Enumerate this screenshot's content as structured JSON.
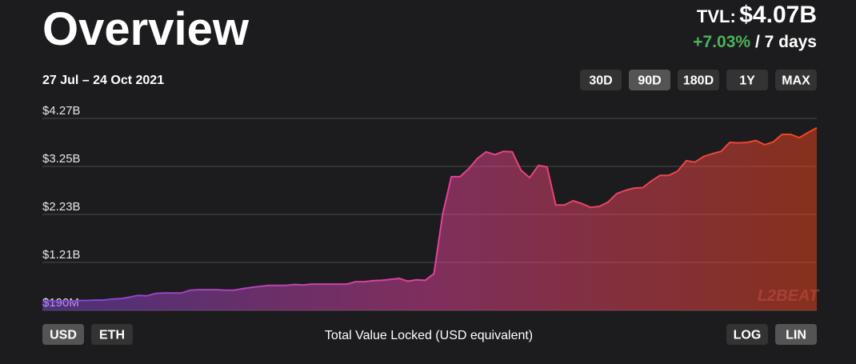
{
  "header": {
    "title": "Overview",
    "tvl_label": "TVL:",
    "tvl_value": "$4.07B",
    "change": "+7.03%",
    "period": "/ 7 days",
    "change_color": "#4cb35a"
  },
  "date_range": "27 Jul – 24 Oct 2021",
  "range_buttons": {
    "options": [
      "30D",
      "90D",
      "180D",
      "1Y",
      "MAX"
    ],
    "selected": 1
  },
  "currency_buttons": {
    "options": [
      "USD",
      "ETH"
    ],
    "selected": 0
  },
  "scale_buttons": {
    "options": [
      "LOG",
      "LIN"
    ],
    "selected": 1
  },
  "watermark": "L2BEAT",
  "chart_data": {
    "type": "area",
    "x_label": "Total Value Locked (USD equivalent)",
    "values": [
      0.39,
      0.39,
      0.39,
      0.39,
      0.4,
      0.4,
      0.41,
      0.41,
      0.43,
      0.44,
      0.47,
      0.51,
      0.5,
      0.55,
      0.56,
      0.56,
      0.56,
      0.62,
      0.63,
      0.63,
      0.63,
      0.62,
      0.62,
      0.65,
      0.68,
      0.7,
      0.72,
      0.72,
      0.72,
      0.74,
      0.73,
      0.75,
      0.75,
      0.75,
      0.75,
      0.75,
      0.8,
      0.8,
      0.82,
      0.83,
      0.85,
      0.87,
      0.81,
      0.84,
      0.83,
      0.97,
      2.23,
      3.03,
      3.03,
      3.2,
      3.42,
      3.56,
      3.5,
      3.57,
      3.56,
      3.17,
      3.01,
      3.27,
      3.24,
      2.43,
      2.43,
      2.52,
      2.46,
      2.38,
      2.4,
      2.49,
      2.67,
      2.74,
      2.79,
      2.8,
      2.94,
      3.06,
      3.06,
      3.15,
      3.37,
      3.34,
      3.46,
      3.52,
      3.57,
      3.76,
      3.75,
      3.76,
      3.8,
      3.71,
      3.77,
      3.93,
      3.93,
      3.86,
      3.97,
      4.07
    ],
    "ylim": [
      0.19,
      4.27
    ],
    "yticks": [
      {
        "value": 0.19,
        "label": "$190M"
      },
      {
        "value": 1.21,
        "label": "$1.21B"
      },
      {
        "value": 2.23,
        "label": "$2.23B"
      },
      {
        "value": 3.25,
        "label": "$3.25B"
      },
      {
        "value": 4.27,
        "label": "$4.27B"
      }
    ],
    "grid": true,
    "colors": [
      "#7b45d6",
      "#e2429c",
      "#f0461c"
    ]
  }
}
